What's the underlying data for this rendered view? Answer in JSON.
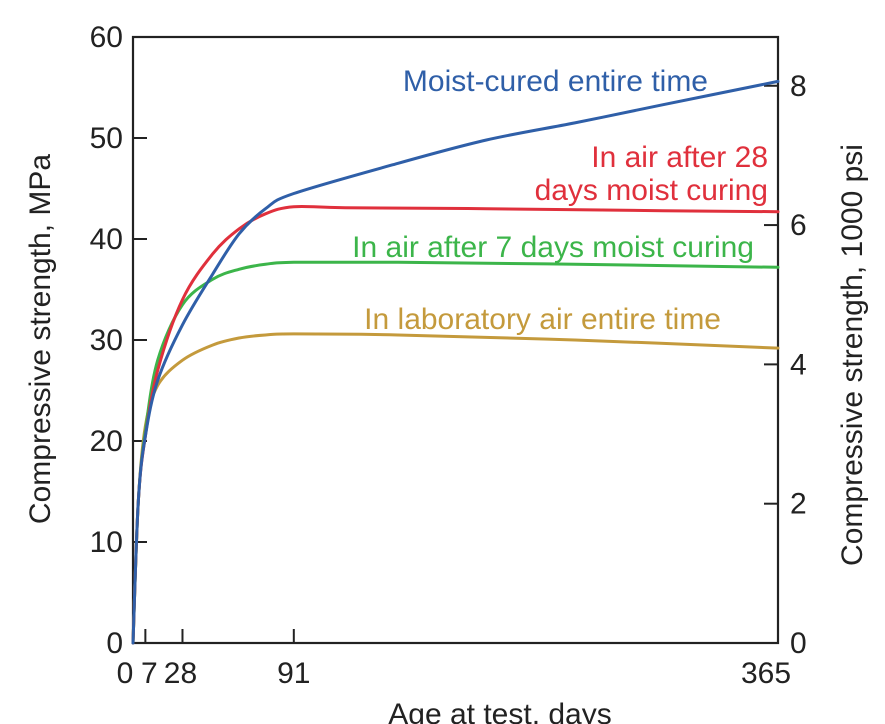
{
  "chart_data": {
    "type": "line",
    "xlabel": "Age at test, days",
    "ylabel": "Compressive strength, MPa",
    "y2label": "Compressive strength, 1000 psi",
    "xlim": [
      0,
      365
    ],
    "ylim": [
      0,
      60
    ],
    "y2lim": [
      0,
      8.7
    ],
    "x_ticks": [
      0,
      7,
      28,
      91,
      365
    ],
    "x_tick_labels": [
      "0",
      "7",
      "28",
      "91",
      "365"
    ],
    "y_ticks": [
      0,
      10,
      20,
      30,
      40,
      50,
      60
    ],
    "y_tick_labels": [
      "0",
      "10",
      "20",
      "30",
      "40",
      "50",
      "60"
    ],
    "y2_ticks": [
      0,
      2,
      4,
      6,
      8
    ],
    "y2_tick_labels": [
      "0",
      "2",
      "4",
      "6",
      "8"
    ],
    "grid": false,
    "series": [
      {
        "name": "Moist-cured entire time",
        "label_lines": [
          "Moist-cured entire time"
        ],
        "color": "#2f5fa8",
        "x": [
          0,
          3,
          7,
          14,
          28,
          45,
          60,
          75,
          91,
          150,
          200,
          250,
          300,
          365
        ],
        "y": [
          0,
          14,
          20.5,
          26,
          31.5,
          36.5,
          40.5,
          43,
          44.5,
          47.5,
          49.8,
          51.5,
          53.3,
          55.6
        ]
      },
      {
        "name": "In air after 28 days moist curing",
        "label_lines": [
          "In air after 28",
          "days moist curing"
        ],
        "color": "#e0303c",
        "x": [
          0,
          3,
          7,
          14,
          28,
          45,
          60,
          75,
          91,
          120,
          200,
          300,
          365
        ],
        "y": [
          0,
          14,
          20.5,
          27,
          34,
          38.5,
          41,
          42.5,
          43.2,
          43.1,
          43,
          42.8,
          42.7
        ]
      },
      {
        "name": "In air after 7 days moist curing",
        "label_lines": [
          "In air after 7 days moist curing"
        ],
        "color": "#3cb54a",
        "x": [
          0,
          3,
          7,
          14,
          28,
          45,
          60,
          75,
          91,
          150,
          250,
          365
        ],
        "y": [
          0,
          14,
          21,
          28,
          33.5,
          36,
          37,
          37.5,
          37.7,
          37.7,
          37.5,
          37.2
        ]
      },
      {
        "name": "In laboratory air entire time",
        "label_lines": [
          "In laboratory air entire time"
        ],
        "color": "#c49a3c",
        "x": [
          0,
          3,
          7,
          14,
          28,
          45,
          60,
          75,
          91,
          150,
          250,
          365
        ],
        "y": [
          0,
          14,
          21.5,
          25.5,
          28,
          29.5,
          30.2,
          30.5,
          30.6,
          30.5,
          30,
          29.2
        ]
      }
    ]
  }
}
